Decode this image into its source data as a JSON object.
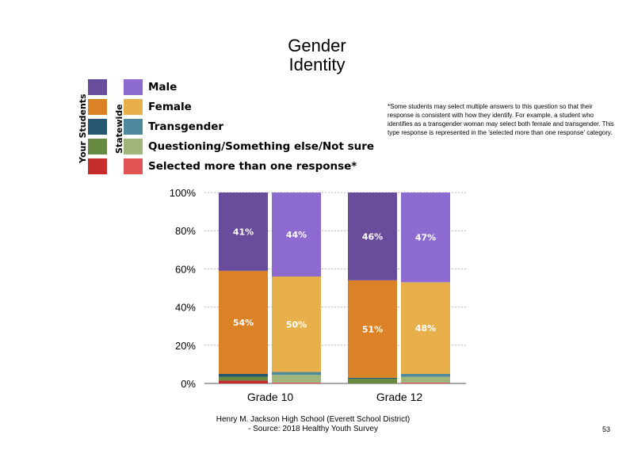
{
  "title": "Gender\nIdentity",
  "legend": {
    "group_labels": {
      "your_students": "Your Students",
      "statewide": "Statewide"
    },
    "items": [
      {
        "label": "Male",
        "color_yours": "#6a4c9c",
        "color_state": "#8e6bd0"
      },
      {
        "label": "Female",
        "color_yours": "#dc8226",
        "color_state": "#e8b04a"
      },
      {
        "label": "Transgender",
        "color_yours": "#255870",
        "color_state": "#4d8a9e"
      },
      {
        "label": "Questioning/Something else/Not sure",
        "color_yours": "#658a40",
        "color_state": "#9fb57a"
      },
      {
        "label": "Selected more than one response*",
        "color_yours": "#c62c2c",
        "color_state": "#e05454"
      }
    ]
  },
  "note": "*Some students may select multiple answers to this question so that their response is consistent with how they identify. For example, a student who identifies as a transgender woman may select both female and transgender. This type response is represented in the 'selected more than one response' category.",
  "footer": "Henry M. Jackson High School (Everett School District)\n- Source: 2018 Healthy Youth Survey",
  "page_number": "53",
  "chart_data": {
    "type": "bar",
    "stacked": true,
    "categories": [
      "Grade 10",
      "Grade 12"
    ],
    "groups": [
      "Your Students",
      "Statewide"
    ],
    "series_order": [
      "Selected more than one response*",
      "Questioning/Something else/Not sure",
      "Transgender",
      "Female",
      "Male"
    ],
    "bars": [
      {
        "category": "Grade 10",
        "group": "Your Students",
        "values": {
          "Male": 41,
          "Female": 54,
          "Transgender": 1.5,
          "Questioning/Something else/Not sure": 2,
          "Selected more than one response*": 1.5
        },
        "labels": {
          "Male": "41%",
          "Female": "54%"
        }
      },
      {
        "category": "Grade 10",
        "group": "Statewide",
        "values": {
          "Male": 44,
          "Female": 50,
          "Transgender": 1.5,
          "Questioning/Something else/Not sure": 4,
          "Selected more than one response*": 0.5
        },
        "labels": {
          "Male": "44%",
          "Female": "50%"
        }
      },
      {
        "category": "Grade 12",
        "group": "Your Students",
        "values": {
          "Male": 46,
          "Female": 51,
          "Transgender": 0.5,
          "Questioning/Something else/Not sure": 2.5,
          "Selected more than one response*": 0
        },
        "labels": {
          "Male": "46%",
          "Female": "51%"
        }
      },
      {
        "category": "Grade 12",
        "group": "Statewide",
        "values": {
          "Male": 47,
          "Female": 48,
          "Transgender": 1.5,
          "Questioning/Something else/Not sure": 3,
          "Selected more than one response*": 0.5
        },
        "labels": {
          "Male": "47%",
          "Female": "48%"
        }
      }
    ],
    "y_ticks": [
      "0%",
      "20%",
      "40%",
      "60%",
      "80%",
      "100%"
    ],
    "ylim": [
      0,
      100
    ],
    "grid": true
  }
}
